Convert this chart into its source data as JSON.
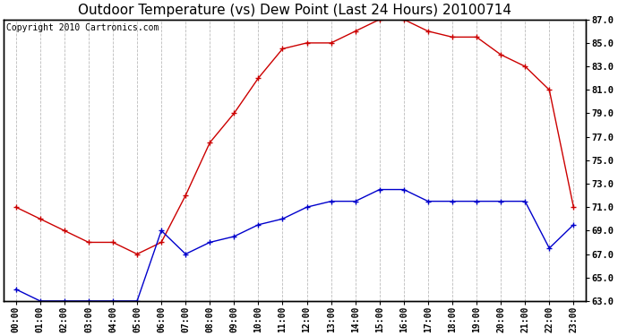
{
  "title": "Outdoor Temperature (vs) Dew Point (Last 24 Hours) 20100714",
  "copyright": "Copyright 2010 Cartronics.com",
  "hours": [
    "00:00",
    "01:00",
    "02:00",
    "03:00",
    "04:00",
    "05:00",
    "06:00",
    "07:00",
    "08:00",
    "09:00",
    "10:00",
    "11:00",
    "12:00",
    "13:00",
    "14:00",
    "15:00",
    "16:00",
    "17:00",
    "18:00",
    "19:00",
    "20:00",
    "21:00",
    "22:00",
    "23:00"
  ],
  "temp": [
    71.0,
    70.0,
    69.0,
    68.0,
    68.0,
    67.0,
    68.0,
    72.0,
    76.5,
    79.0,
    82.0,
    84.5,
    85.0,
    85.0,
    86.0,
    87.0,
    87.0,
    86.0,
    85.5,
    85.5,
    84.0,
    83.0,
    81.0,
    71.0
  ],
  "dew": [
    64.0,
    63.0,
    63.0,
    63.0,
    63.0,
    63.0,
    69.0,
    67.0,
    68.0,
    68.5,
    69.5,
    70.0,
    71.0,
    71.5,
    71.5,
    72.5,
    72.5,
    71.5,
    71.5,
    71.5,
    71.5,
    71.5,
    67.5,
    69.5
  ],
  "ylim": [
    63.0,
    87.0
  ],
  "yticks": [
    63.0,
    65.0,
    67.0,
    69.0,
    71.0,
    73.0,
    75.0,
    77.0,
    79.0,
    81.0,
    83.0,
    85.0,
    87.0
  ],
  "temp_color": "#cc0000",
  "dew_color": "#0000cc",
  "bg_color": "#ffffff",
  "grid_color": "#bbbbbb",
  "title_fontsize": 11,
  "copyright_fontsize": 7
}
